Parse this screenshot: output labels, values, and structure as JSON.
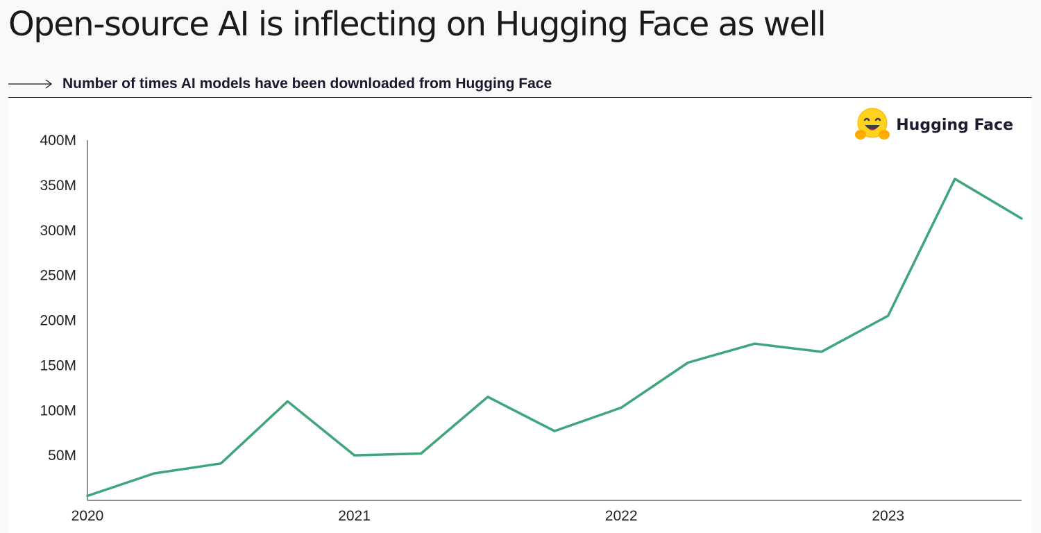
{
  "page": {
    "title": "Open-source AI is inflecting on Hugging Face as well",
    "subtitle": "Number of times AI models have been downloaded from Hugging Face"
  },
  "brand": {
    "name": "Hugging Face",
    "icon": "hugging-face-emoji-icon"
  },
  "colors": {
    "line": "#3fa57a",
    "axis": "#222222"
  },
  "chart_data": {
    "type": "line",
    "title": "",
    "xlabel": "",
    "ylabel": "",
    "grid": false,
    "legend": "none",
    "ylim": [
      0,
      400000000
    ],
    "xlim": [
      2020.0,
      2023.5
    ],
    "y_ticks": [
      {
        "value": 50000000,
        "label": "50M"
      },
      {
        "value": 100000000,
        "label": "100M"
      },
      {
        "value": 150000000,
        "label": "150M"
      },
      {
        "value": 200000000,
        "label": "200M"
      },
      {
        "value": 250000000,
        "label": "250M"
      },
      {
        "value": 300000000,
        "label": "300M"
      },
      {
        "value": 350000000,
        "label": "350M"
      },
      {
        "value": 400000000,
        "label": "400M"
      }
    ],
    "x_ticks": [
      {
        "value": 2020,
        "label": "2020"
      },
      {
        "value": 2021,
        "label": "2021"
      },
      {
        "value": 2022,
        "label": "2022"
      },
      {
        "value": 2023,
        "label": "2023"
      }
    ],
    "series": [
      {
        "points": [
          {
            "x": 2020.0,
            "y": 5000000
          },
          {
            "x": 2020.25,
            "y": 30000000
          },
          {
            "x": 2020.5,
            "y": 41000000
          },
          {
            "x": 2020.75,
            "y": 110000000
          },
          {
            "x": 2021.0,
            "y": 50000000
          },
          {
            "x": 2021.25,
            "y": 52000000
          },
          {
            "x": 2021.5,
            "y": 115000000
          },
          {
            "x": 2021.75,
            "y": 77000000
          },
          {
            "x": 2022.0,
            "y": 103000000
          },
          {
            "x": 2022.25,
            "y": 153000000
          },
          {
            "x": 2022.5,
            "y": 174000000
          },
          {
            "x": 2022.75,
            "y": 165000000
          },
          {
            "x": 2023.0,
            "y": 205000000
          },
          {
            "x": 2023.25,
            "y": 357000000
          },
          {
            "x": 2023.5,
            "y": 313000000
          }
        ]
      }
    ]
  }
}
